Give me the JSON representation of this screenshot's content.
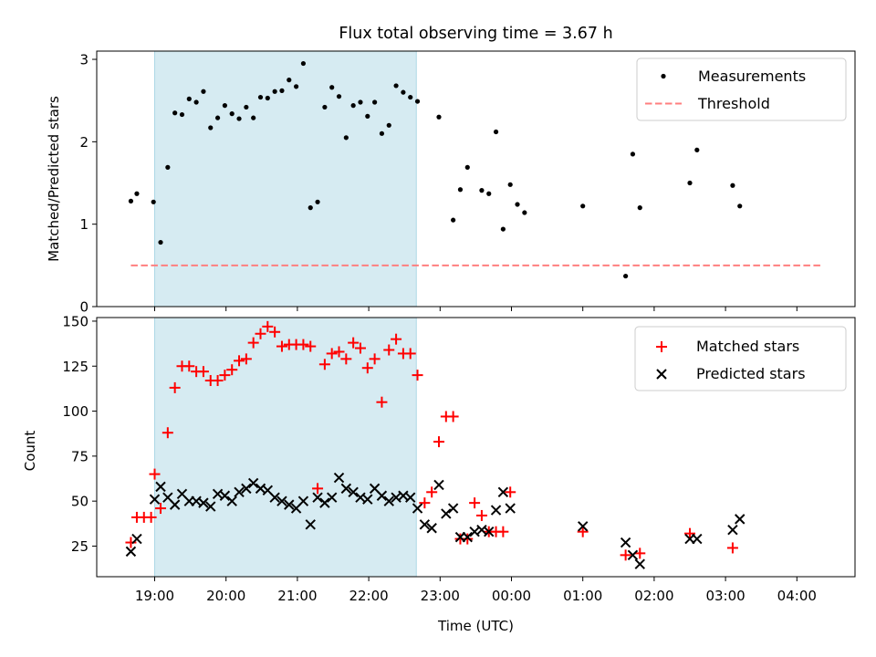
{
  "figure": {
    "title": "Flux total observing time = 3.67 h",
    "xlabel": "Time (UTC)",
    "x_ticks": [
      "19:00",
      "20:00",
      "21:00",
      "22:00",
      "23:00",
      "00:00",
      "01:00",
      "02:00",
      "03:00",
      "04:00"
    ],
    "shaded_span": {
      "start": "19:00",
      "end": "22:40",
      "color": "#add8e6"
    }
  },
  "chart_data": [
    {
      "type": "scatter",
      "ylabel": "Matched/Predicted stars",
      "ylim": [
        0,
        3.1
      ],
      "y_ticks": [
        0,
        1,
        2,
        3
      ],
      "legend_position": "top-right",
      "series": [
        {
          "name": "Measurements",
          "color": "#000000",
          "marker": "dot",
          "x": [
            "18:40",
            "18:45",
            "18:59",
            "19:05",
            "19:11",
            "19:17",
            "19:23",
            "19:29",
            "19:35",
            "19:41",
            "19:47",
            "19:53",
            "19:59",
            "20:05",
            "20:11",
            "20:17",
            "20:23",
            "20:29",
            "20:35",
            "20:41",
            "20:47",
            "20:53",
            "20:59",
            "21:05",
            "21:11",
            "21:17",
            "21:23",
            "21:29",
            "21:35",
            "21:41",
            "21:47",
            "21:53",
            "21:59",
            "22:05",
            "22:11",
            "22:17",
            "22:23",
            "22:29",
            "22:35",
            "22:41",
            "22:59",
            "23:11",
            "23:17",
            "23:23",
            "23:35",
            "23:41",
            "23:47",
            "23:53",
            "23:59",
            "00:05",
            "00:11",
            "01:00",
            "01:36",
            "01:42",
            "01:48",
            "02:30",
            "02:36",
            "03:06",
            "03:12"
          ],
          "y": [
            1.28,
            1.37,
            1.27,
            0.78,
            1.69,
            2.35,
            2.33,
            2.52,
            2.48,
            2.61,
            2.17,
            2.29,
            2.44,
            2.34,
            2.28,
            2.42,
            2.29,
            2.54,
            2.53,
            2.61,
            2.62,
            2.75,
            2.67,
            2.95,
            1.2,
            1.27,
            2.42,
            2.66,
            2.55,
            2.05,
            2.44,
            2.48,
            2.31,
            2.48,
            2.1,
            2.2,
            2.68,
            2.6,
            2.54,
            2.49,
            2.3,
            1.05,
            1.42,
            1.69,
            1.41,
            1.37,
            2.12,
            0.94,
            1.48,
            1.24,
            1.14,
            1.22,
            0.37,
            1.85,
            1.2,
            1.5,
            1.9,
            1.47,
            1.22
          ]
        },
        {
          "name": "Threshold",
          "color": "#ff7f7f",
          "style": "dashed",
          "x": [
            "18:40",
            "04:20"
          ],
          "y": [
            0.5,
            0.5
          ]
        }
      ]
    },
    {
      "type": "scatter",
      "ylabel": "Count",
      "ylim": [
        8,
        152
      ],
      "y_ticks": [
        25,
        50,
        75,
        100,
        125,
        150
      ],
      "legend_position": "top-right",
      "series": [
        {
          "name": "Matched stars",
          "color": "#ff0000",
          "marker": "plus",
          "x": [
            "18:40",
            "18:45",
            "18:51",
            "18:57",
            "19:00",
            "19:05",
            "19:11",
            "19:17",
            "19:23",
            "19:29",
            "19:35",
            "19:41",
            "19:47",
            "19:53",
            "19:59",
            "20:05",
            "20:11",
            "20:17",
            "20:23",
            "20:29",
            "20:35",
            "20:41",
            "20:47",
            "20:53",
            "20:59",
            "21:05",
            "21:11",
            "21:17",
            "21:23",
            "21:29",
            "21:35",
            "21:41",
            "21:47",
            "21:53",
            "21:59",
            "22:05",
            "22:11",
            "22:17",
            "22:23",
            "22:29",
            "22:35",
            "22:41",
            "22:47",
            "22:53",
            "22:59",
            "23:05",
            "23:11",
            "23:17",
            "23:23",
            "23:29",
            "23:35",
            "23:41",
            "23:47",
            "23:53",
            "23:59",
            "01:00",
            "01:36",
            "01:48",
            "02:30",
            "03:06"
          ],
          "y": [
            27,
            41,
            41,
            41,
            65,
            46,
            88,
            113,
            125,
            125,
            122,
            122,
            117,
            117,
            120,
            123,
            128,
            129,
            138,
            143,
            147,
            144,
            136,
            137,
            137,
            137,
            136,
            57,
            126,
            132,
            133,
            129,
            138,
            135,
            124,
            129,
            105,
            134,
            140,
            132,
            132,
            120,
            49,
            55,
            83,
            97,
            97,
            29,
            29,
            49,
            42,
            33,
            33,
            33,
            55,
            33,
            20,
            21,
            32,
            24
          ]
        },
        {
          "name": "Predicted stars",
          "color": "#000000",
          "marker": "x",
          "x": [
            "18:40",
            "18:45",
            "19:00",
            "19:05",
            "19:11",
            "19:17",
            "19:23",
            "19:29",
            "19:35",
            "19:41",
            "19:47",
            "19:53",
            "19:59",
            "20:05",
            "20:11",
            "20:17",
            "20:23",
            "20:29",
            "20:35",
            "20:41",
            "20:47",
            "20:53",
            "20:59",
            "21:05",
            "21:11",
            "21:17",
            "21:23",
            "21:29",
            "21:35",
            "21:41",
            "21:47",
            "21:53",
            "21:59",
            "22:05",
            "22:11",
            "22:17",
            "22:23",
            "22:29",
            "22:35",
            "22:41",
            "22:47",
            "22:53",
            "22:59",
            "23:05",
            "23:11",
            "23:17",
            "23:23",
            "23:29",
            "23:35",
            "23:41",
            "23:47",
            "23:53",
            "23:59",
            "01:00",
            "01:36",
            "01:42",
            "01:48",
            "02:30",
            "02:36",
            "03:06",
            "03:12"
          ],
          "y": [
            22,
            29,
            51,
            58,
            52,
            48,
            54,
            50,
            50,
            49,
            47,
            54,
            53,
            50,
            55,
            57,
            60,
            57,
            56,
            52,
            50,
            48,
            46,
            50,
            37,
            52,
            49,
            52,
            63,
            57,
            55,
            52,
            51,
            57,
            53,
            50,
            52,
            53,
            52,
            46,
            37,
            35,
            59,
            43,
            46,
            30,
            30,
            33,
            34,
            33,
            45,
            55,
            46,
            36,
            27,
            20,
            15,
            29,
            29,
            34,
            40
          ]
        }
      ]
    }
  ]
}
